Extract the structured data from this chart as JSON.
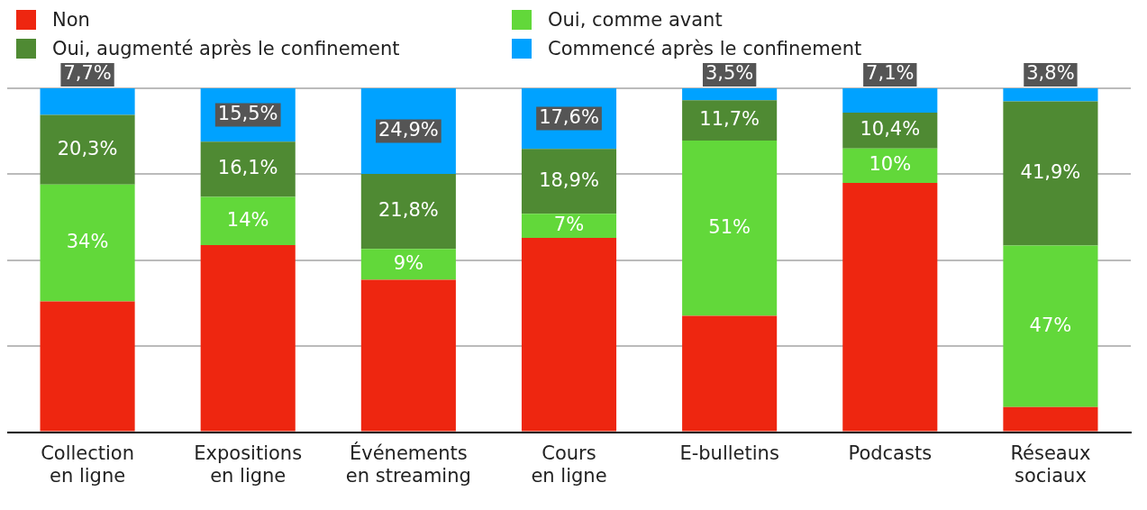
{
  "chart_data": {
    "type": "bar",
    "stacked": true,
    "legend": "top",
    "grid": "y",
    "tick_labels": "x",
    "categories": [
      "Collection en ligne",
      "Expositions en ligne",
      "Événements en streaming",
      "Cours en ligne",
      "E-bulletins",
      "Podcasts",
      "Réseaux sociaux"
    ],
    "ylim": [
      0,
      100
    ],
    "yticks": [
      {
        "value": 0,
        "label": null
      },
      {
        "value": 25,
        "label": null
      },
      {
        "value": 50,
        "label": null
      },
      {
        "value": 75,
        "label": null
      },
      {
        "value": 100,
        "label": null
      }
    ],
    "series": [
      {
        "name": "Non",
        "color": "#ee2610",
        "values": [
          38,
          54.4,
          44.3,
          56.5,
          33.8,
          72.5,
          7.3
        ]
      },
      {
        "name": "Oui, comme avant",
        "color": "#62d83a",
        "values": [
          34,
          14,
          9,
          7,
          51,
          10,
          47
        ],
        "value_labels": [
          "34%",
          "14%",
          "9%",
          "7%",
          "51%",
          "10%",
          "47%"
        ]
      },
      {
        "name": "Oui, augmenté après le confinement",
        "color": "#4f8a33",
        "values": [
          20.3,
          16.1,
          21.8,
          18.9,
          11.7,
          10.4,
          41.9
        ],
        "value_labels": [
          "20,3%",
          "16,1%",
          "21,8%",
          "18,9%",
          "11,7%",
          "10,4%",
          "41,9%"
        ]
      },
      {
        "name": "Commencé après le confinement",
        "color": "#00a2ff",
        "values": [
          7.7,
          15.5,
          24.9,
          17.6,
          3.5,
          7.1,
          3.8
        ],
        "value_labels": [
          "7,7%",
          "15,5%",
          "24,9%",
          "17,6%",
          "3,5%",
          "7,1%",
          "3,8%"
        ]
      }
    ]
  }
}
